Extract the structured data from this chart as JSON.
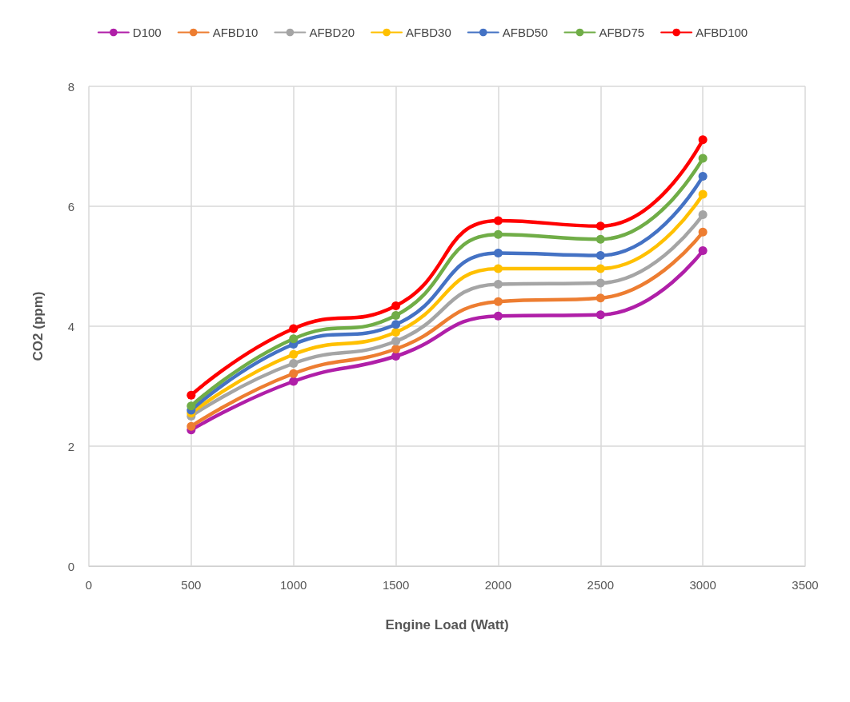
{
  "chart_data": {
    "type": "line",
    "xlabel": "Engine Load (Watt)",
    "ylabel": "CO2 (ppm)",
    "x": [
      500,
      1000,
      1500,
      2000,
      2500,
      3000
    ],
    "xlim": [
      0,
      3500
    ],
    "xticks": [
      0,
      500,
      1000,
      1500,
      2000,
      2500,
      3000,
      3500
    ],
    "ylim": [
      0,
      8
    ],
    "yticks": [
      0,
      2,
      4,
      6,
      8
    ],
    "grid": true,
    "legend": "top",
    "marker": "circle",
    "line_style": "solid",
    "series": [
      {
        "name": "D100",
        "color": "#b01fa8",
        "values": [
          2.27,
          3.08,
          3.5,
          4.17,
          4.19,
          5.26
        ]
      },
      {
        "name": "AFBD10",
        "color": "#ed7d31",
        "values": [
          2.33,
          3.21,
          3.62,
          4.41,
          4.47,
          5.57
        ]
      },
      {
        "name": "AFBD20",
        "color": "#a5a5a5",
        "values": [
          2.5,
          3.38,
          3.75,
          4.7,
          4.72,
          5.86
        ]
      },
      {
        "name": "AFBD30",
        "color": "#ffc000",
        "values": [
          2.55,
          3.53,
          3.9,
          4.96,
          4.96,
          6.2
        ]
      },
      {
        "name": "AFBD50",
        "color": "#4472c4",
        "values": [
          2.6,
          3.7,
          4.03,
          5.22,
          5.18,
          6.5
        ]
      },
      {
        "name": "AFBD75",
        "color": "#70ad47",
        "values": [
          2.67,
          3.79,
          4.18,
          5.53,
          5.45,
          6.8
        ]
      },
      {
        "name": "AFBD100",
        "color": "#ff0000",
        "values": [
          2.85,
          3.96,
          4.34,
          5.76,
          5.67,
          7.11
        ]
      }
    ]
  }
}
